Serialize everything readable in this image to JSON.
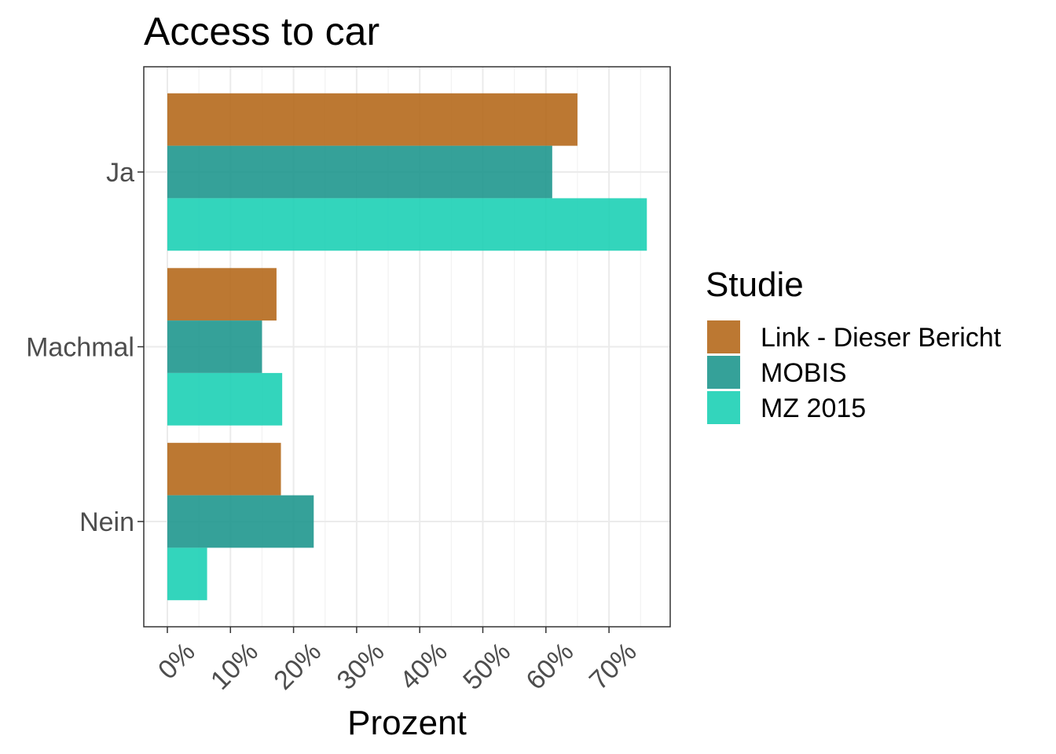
{
  "chart_data": {
    "type": "bar",
    "orientation": "horizontal",
    "title": "Access to car",
    "xlabel": "Prozent",
    "ylabel": "",
    "categories": [
      "Ja",
      "Machmal",
      "Nein"
    ],
    "series": [
      {
        "name": "Link - Dieser Bericht",
        "color": "#b5691c",
        "values": [
          65,
          17.3,
          18
        ]
      },
      {
        "name": "MOBIS",
        "color": "#1f978e",
        "values": [
          61,
          15,
          23.2
        ]
      },
      {
        "name": "MZ 2015",
        "color": "#1dd0b5",
        "values": [
          76,
          18.2,
          6.3
        ]
      }
    ],
    "xlim": [
      0,
      80
    ],
    "x_ticks": [
      0,
      10,
      20,
      30,
      40,
      50,
      60,
      70
    ],
    "x_tick_labels": [
      "0%",
      "10%",
      "20%",
      "30%",
      "40%",
      "50%",
      "60%",
      "70%"
    ],
    "grid": true,
    "legend": {
      "title": "Studie",
      "position": "right"
    }
  }
}
